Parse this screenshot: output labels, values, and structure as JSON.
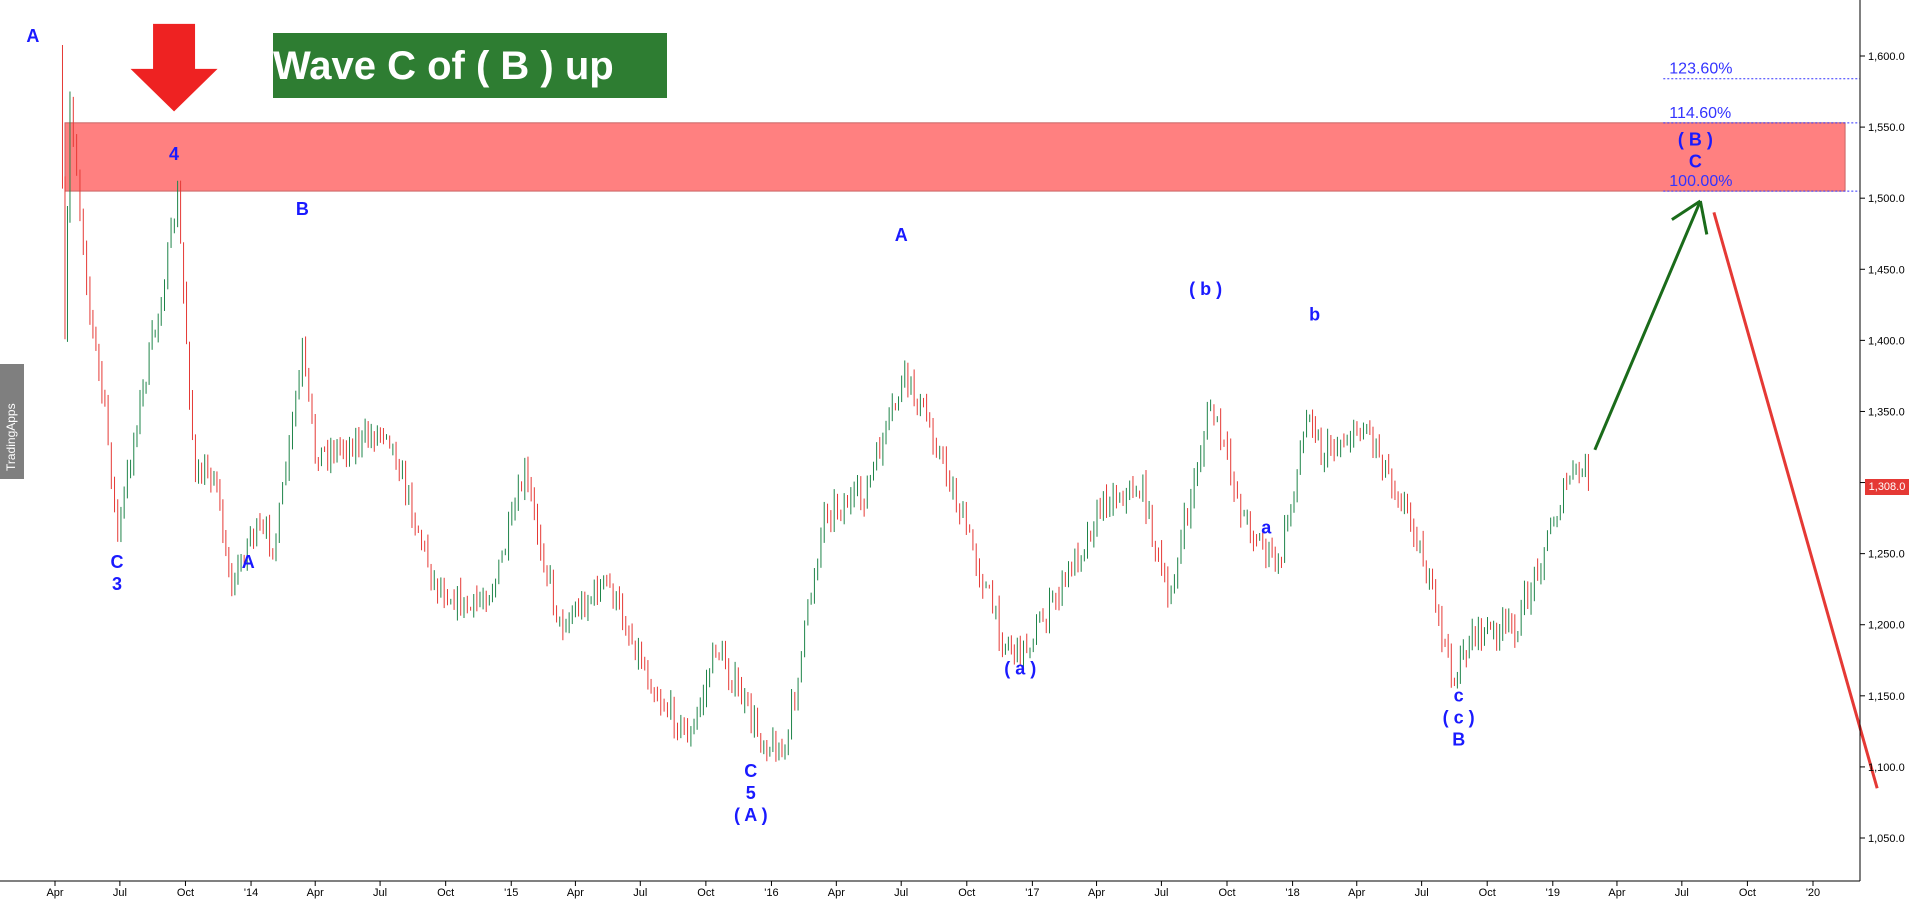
{
  "chart": {
    "title": "Wave C of ( B ) up",
    "brand": "TradingApps",
    "last_price_label": "1,308.0",
    "colors": {
      "up_candle": "#1e8449",
      "down_candle": "#e53935",
      "wave_label": "#1a1aff",
      "resistance_zone": "#ff8080",
      "title_bg": "#2e7d32",
      "projection_up": "#1a6b1a",
      "projection_down": "#e53935",
      "fib_line": "#3333ff",
      "sell_arrow": "#ee2222"
    },
    "icons": {
      "sell_arrow": "down-arrow-icon"
    }
  },
  "chart_data": {
    "type": "candlestick",
    "title": "Wave C of ( B ) up",
    "x_ticks": [
      {
        "date": "2013-04",
        "label": "Apr"
      },
      {
        "date": "2013-07",
        "label": "Jul"
      },
      {
        "date": "2013-10",
        "label": "Oct"
      },
      {
        "date": "2014-01",
        "label": "'14"
      },
      {
        "date": "2014-04",
        "label": "Apr"
      },
      {
        "date": "2014-07",
        "label": "Jul"
      },
      {
        "date": "2014-10",
        "label": "Oct"
      },
      {
        "date": "2015-01",
        "label": "'15"
      },
      {
        "date": "2015-04",
        "label": "Apr"
      },
      {
        "date": "2015-07",
        "label": "Jul"
      },
      {
        "date": "2015-10",
        "label": "Oct"
      },
      {
        "date": "2016-01",
        "label": "'16"
      },
      {
        "date": "2016-04",
        "label": "Apr"
      },
      {
        "date": "2016-07",
        "label": "Jul"
      },
      {
        "date": "2016-10",
        "label": "Oct"
      },
      {
        "date": "2017-01",
        "label": "'17"
      },
      {
        "date": "2017-04",
        "label": "Apr"
      },
      {
        "date": "2017-07",
        "label": "Jul"
      },
      {
        "date": "2017-10",
        "label": "Oct"
      },
      {
        "date": "2018-01",
        "label": "'18"
      },
      {
        "date": "2018-04",
        "label": "Apr"
      },
      {
        "date": "2018-07",
        "label": "Jul"
      },
      {
        "date": "2018-10",
        "label": "Oct"
      },
      {
        "date": "2019-01",
        "label": "'19"
      },
      {
        "date": "2019-04",
        "label": "Apr"
      },
      {
        "date": "2019-07",
        "label": "Jul"
      },
      {
        "date": "2019-10",
        "label": "Oct"
      },
      {
        "date": "2020-01",
        "label": "'20"
      }
    ],
    "y_ticks": [
      "1,050.0",
      "1,100.0",
      "1,150.0",
      "1,200.0",
      "1,250.0",
      "1,300.0",
      "1,350.0",
      "1,400.0",
      "1,450.0",
      "1,500.0",
      "1,550.0",
      "1,600.0"
    ],
    "ylim": [
      1020,
      1625
    ],
    "price_path": [
      {
        "date": "2013-04-08",
        "price": 1600
      },
      {
        "date": "2013-04-15",
        "price": 1400
      },
      {
        "date": "2013-04-22",
        "price": 1570
      },
      {
        "date": "2013-05-20",
        "price": 1420
      },
      {
        "date": "2013-06-10",
        "price": 1350
      },
      {
        "date": "2013-06-28",
        "price": 1262
      },
      {
        "date": "2013-07-25",
        "price": 1345
      },
      {
        "date": "2013-08-28",
        "price": 1430
      },
      {
        "date": "2013-09-20",
        "price": 1500
      },
      {
        "date": "2013-10-15",
        "price": 1300
      },
      {
        "date": "2013-11-10",
        "price": 1310
      },
      {
        "date": "2013-12-05",
        "price": 1225
      },
      {
        "date": "2013-12-31",
        "price": 1265
      },
      {
        "date": "2014-02-05",
        "price": 1260
      },
      {
        "date": "2014-03-14",
        "price": 1390
      },
      {
        "date": "2014-04-01",
        "price": 1320
      },
      {
        "date": "2014-06-10",
        "price": 1330
      },
      {
        "date": "2014-07-10",
        "price": 1340
      },
      {
        "date": "2014-09-15",
        "price": 1230
      },
      {
        "date": "2014-11-05",
        "price": 1210
      },
      {
        "date": "2014-12-10",
        "price": 1230
      },
      {
        "date": "2015-01-20",
        "price": 1305
      },
      {
        "date": "2015-03-10",
        "price": 1200
      },
      {
        "date": "2015-05-15",
        "price": 1230
      },
      {
        "date": "2015-07-25",
        "price": 1150
      },
      {
        "date": "2015-09-10",
        "price": 1120
      },
      {
        "date": "2015-10-15",
        "price": 1185
      },
      {
        "date": "2015-12-17",
        "price": 1120
      },
      {
        "date": "2016-01-20",
        "price": 1110
      },
      {
        "date": "2016-03-15",
        "price": 1280
      },
      {
        "date": "2016-05-10",
        "price": 1290
      },
      {
        "date": "2016-07-06",
        "price": 1375
      },
      {
        "date": "2016-08-10",
        "price": 1340
      },
      {
        "date": "2016-10-05",
        "price": 1260
      },
      {
        "date": "2016-11-20",
        "price": 1190
      },
      {
        "date": "2016-12-15",
        "price": 1180
      },
      {
        "date": "2017-01-25",
        "price": 1210
      },
      {
        "date": "2017-04-15",
        "price": 1290
      },
      {
        "date": "2017-06-05",
        "price": 1295
      },
      {
        "date": "2017-07-10",
        "price": 1215
      },
      {
        "date": "2017-09-08",
        "price": 1355
      },
      {
        "date": "2017-10-25",
        "price": 1275
      },
      {
        "date": "2017-12-12",
        "price": 1240
      },
      {
        "date": "2018-01-25",
        "price": 1355
      },
      {
        "date": "2018-02-10",
        "price": 1320
      },
      {
        "date": "2018-04-15",
        "price": 1340
      },
      {
        "date": "2018-06-20",
        "price": 1270
      },
      {
        "date": "2018-08-16",
        "price": 1160
      },
      {
        "date": "2018-09-10",
        "price": 1195
      },
      {
        "date": "2018-10-10",
        "price": 1195
      },
      {
        "date": "2018-11-13",
        "price": 1200
      },
      {
        "date": "2018-12-20",
        "price": 1255
      },
      {
        "date": "2019-01-25",
        "price": 1305
      },
      {
        "date": "2019-02-20",
        "price": 1308
      }
    ],
    "zone": {
      "from_date": "2013-04-15",
      "to_date": "2020-02-15",
      "low": 1505,
      "high": 1553,
      "label": "resistance zone"
    },
    "fib_levels": [
      {
        "label": "123.60%",
        "price": 1584
      },
      {
        "label": "114.60%",
        "price": 1553
      },
      {
        "label": "100.00%",
        "price": 1505
      }
    ],
    "fib_start_date": "2019-06-05",
    "projections": [
      {
        "name": "wave C up",
        "from": {
          "date": "2019-03-01",
          "price": 1323
        },
        "to": {
          "date": "2019-07-27",
          "price": 1498
        }
      },
      {
        "name": "decline",
        "from": {
          "date": "2019-08-15",
          "price": 1490
        },
        "to": {
          "date": "2020-03-31",
          "price": 1085
        }
      }
    ],
    "wave_labels": [
      {
        "date": "2013-03-01",
        "price": 1610,
        "lines": [
          "A"
        ]
      },
      {
        "date": "2013-09-15",
        "price": 1527,
        "lines": [
          "4"
        ]
      },
      {
        "date": "2013-06-27",
        "price": 1240,
        "lines": [
          "C",
          "3"
        ]
      },
      {
        "date": "2014-03-14",
        "price": 1488,
        "lines": [
          "B"
        ]
      },
      {
        "date": "2013-12-28",
        "price": 1240,
        "lines": [
          "A"
        ]
      },
      {
        "date": "2015-12-03",
        "price": 1093,
        "lines": [
          "C",
          "5",
          "( A )"
        ]
      },
      {
        "date": "2016-07-01",
        "price": 1470,
        "lines": [
          "A"
        ]
      },
      {
        "date": "2016-12-15",
        "price": 1165,
        "lines": [
          "( a )"
        ]
      },
      {
        "date": "2017-09-01",
        "price": 1432,
        "lines": [
          "( b )"
        ]
      },
      {
        "date": "2017-11-25",
        "price": 1264,
        "lines": [
          "a"
        ]
      },
      {
        "date": "2018-02-01",
        "price": 1414,
        "lines": [
          "b"
        ]
      },
      {
        "date": "2018-08-22",
        "price": 1146,
        "lines": [
          "c",
          "( c )",
          "B"
        ]
      },
      {
        "date": "2019-07-20",
        "price": 1537,
        "lines": [
          "( B )",
          "C"
        ]
      }
    ],
    "sell_arrow": {
      "date": "2013-09-15",
      "price": 1560
    }
  }
}
